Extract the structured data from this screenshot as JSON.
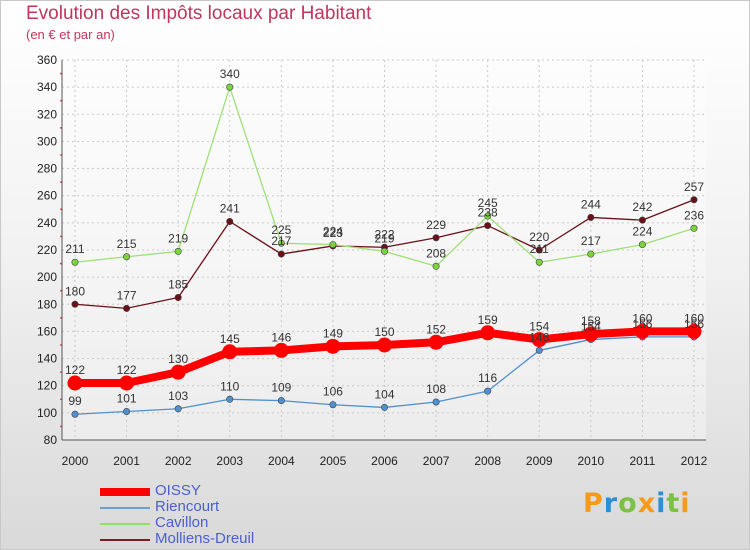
{
  "chart_data": {
    "type": "line",
    "title": "Evolution des Impôts locaux par Habitant",
    "subtitle": "(en € et par an)",
    "x": [
      "2000",
      "2001",
      "2002",
      "2003",
      "2004",
      "2005",
      "2006",
      "2007",
      "2008",
      "2009",
      "2010",
      "2011",
      "2012"
    ],
    "ylim": [
      80,
      360
    ],
    "yticks": [
      80,
      100,
      120,
      140,
      160,
      180,
      200,
      220,
      240,
      260,
      280,
      300,
      320,
      340,
      360
    ],
    "grid": true,
    "legend_position": "bottom-left",
    "series": [
      {
        "name": "OISSY",
        "color": "#ff0000",
        "values": [
          122,
          122,
          130,
          145,
          146,
          149,
          150,
          152,
          159,
          154,
          158,
          160,
          160
        ]
      },
      {
        "name": "Riencourt",
        "color": "#6a9fd2",
        "values": [
          99,
          101,
          103,
          110,
          109,
          106,
          104,
          108,
          116,
          146,
          154,
          156,
          156
        ]
      },
      {
        "name": "Cavillon",
        "color": "#8fe063",
        "values": [
          211,
          215,
          219,
          340,
          225,
          224,
          219,
          208,
          245,
          211,
          217,
          224,
          236
        ]
      },
      {
        "name": "Molliens-Dreuil",
        "color": "#7a1d24",
        "values": [
          180,
          177,
          185,
          241,
          217,
          223,
          222,
          229,
          238,
          220,
          244,
          242,
          257
        ]
      }
    ]
  },
  "logo": {
    "letters": [
      {
        "ch": "P",
        "color": "#f59a1b"
      },
      {
        "ch": "r",
        "color": "#2a8fd6"
      },
      {
        "ch": "o",
        "color": "#7cc242"
      },
      {
        "ch": "x",
        "color": "#f59a1b"
      },
      {
        "ch": "i",
        "color": "#2a8fd6"
      },
      {
        "ch": "t",
        "color": "#7cc242"
      },
      {
        "ch": "i",
        "color": "#f59a1b"
      }
    ]
  }
}
